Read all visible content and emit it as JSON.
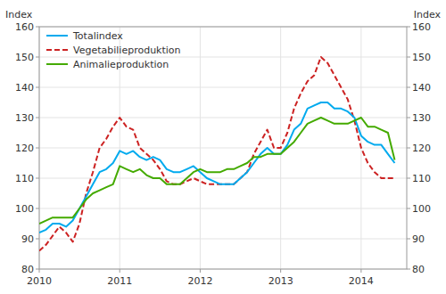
{
  "chart_data": {
    "type": "line",
    "ylabel": "Index",
    "y2label": "Index",
    "x": [
      2010,
      2010.0833,
      2010.1667,
      2010.25,
      2010.3333,
      2010.4167,
      2010.5,
      2010.5833,
      2010.6667,
      2010.75,
      2010.8333,
      2010.9167,
      2011,
      2011.0833,
      2011.1667,
      2011.25,
      2011.3333,
      2011.4167,
      2011.5,
      2011.5833,
      2011.6667,
      2011.75,
      2011.8333,
      2011.9167,
      2012,
      2012.0833,
      2012.1667,
      2012.25,
      2012.3333,
      2012.4167,
      2012.5,
      2012.5833,
      2012.6667,
      2012.75,
      2012.8333,
      2012.9167,
      2013,
      2013.0833,
      2013.1667,
      2013.25,
      2013.3333,
      2013.4167,
      2013.5,
      2013.5833,
      2013.6667,
      2013.75,
      2013.8333,
      2013.9167,
      2014,
      2014.0833,
      2014.1667,
      2014.25,
      2014.3333,
      2014.4167
    ],
    "xlim": [
      2010,
      2014.5667
    ],
    "xticks": [
      2010,
      2011,
      2012,
      2013,
      2014
    ],
    "ylim": [
      80,
      160
    ],
    "yticks": [
      80,
      90,
      100,
      110,
      120,
      130,
      140,
      150,
      160
    ],
    "y2lim": [
      80,
      160
    ],
    "y2ticks": [
      80,
      90,
      100,
      110,
      120,
      130,
      140,
      150,
      160
    ],
    "grid": true,
    "legend": "upper left",
    "series": [
      {
        "name": "Totalindex",
        "color": "#00aaee",
        "line_style": "solid",
        "values": [
          92,
          93,
          95,
          95,
          94,
          96,
          100,
          104,
          108,
          112,
          113,
          115,
          119,
          118,
          119,
          117,
          116,
          117,
          116,
          113,
          112,
          112,
          113,
          114,
          112,
          110,
          109,
          108,
          108,
          108,
          110,
          112,
          115,
          118,
          120,
          118,
          118,
          121,
          126,
          128,
          133,
          134,
          135,
          135,
          133,
          133,
          132,
          130,
          124,
          122,
          121,
          121,
          118,
          115
        ]
      },
      {
        "name": "Vegetabilieproduktion",
        "color": "#cc2222",
        "line_style": "dashed",
        "values": [
          86,
          88,
          91,
          94,
          92,
          89,
          95,
          105,
          112,
          120,
          123,
          127,
          130,
          127,
          126,
          120,
          118,
          116,
          113,
          109,
          108,
          108,
          109,
          110,
          109,
          108,
          108,
          108,
          108,
          108,
          110,
          112,
          118,
          122,
          126,
          120,
          120,
          125,
          133,
          138,
          142,
          144,
          150,
          148,
          144,
          140,
          136,
          129,
          120,
          115,
          112,
          110,
          110,
          110
        ]
      },
      {
        "name": "Animalieproduktion",
        "color": "#44aa00",
        "line_style": "solid",
        "values": [
          95,
          96,
          97,
          97,
          97,
          97,
          100,
          103,
          105,
          106,
          107,
          108,
          114,
          113,
          112,
          113,
          111,
          110,
          110,
          108,
          108,
          108,
          110,
          112,
          113,
          112,
          112,
          112,
          113,
          113,
          114,
          115,
          117,
          117,
          118,
          118,
          118,
          120,
          122,
          125,
          128,
          129,
          130,
          129,
          128,
          128,
          128,
          129,
          130,
          127,
          127,
          126,
          125,
          116
        ]
      }
    ]
  }
}
